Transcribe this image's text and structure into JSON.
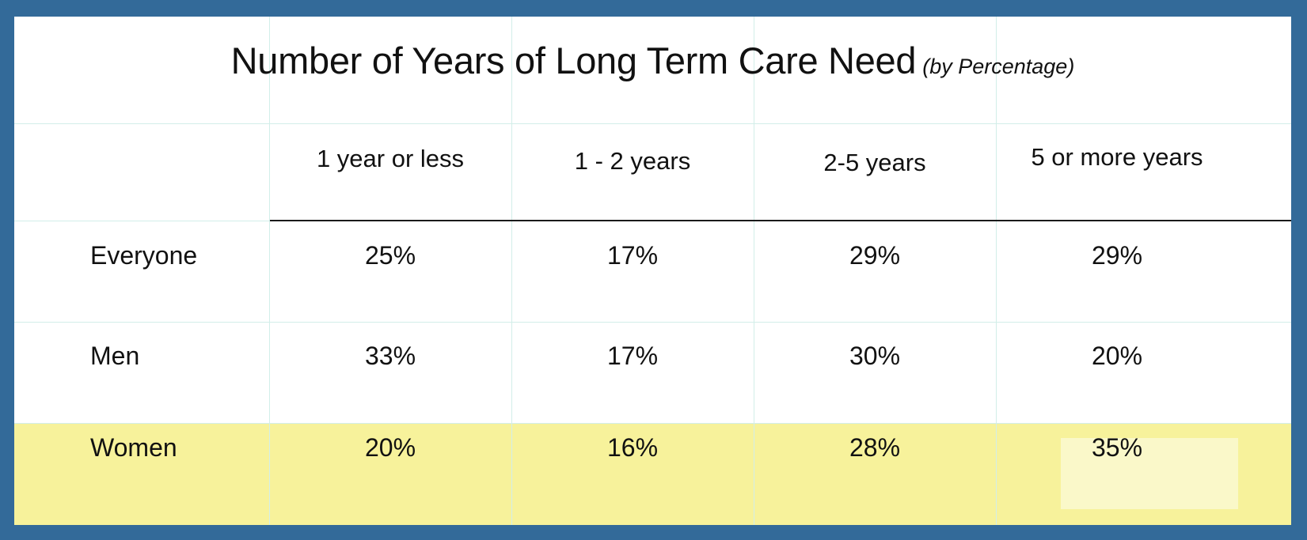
{
  "chart_data": {
    "type": "table",
    "title": "Number of Years of Long Term Care Need",
    "subtitle": "(by Percentage)",
    "columns": [
      "1 year or less",
      "1 - 2 years",
      "2-5 years",
      "5 or more years"
    ],
    "rows": [
      {
        "label": "Everyone",
        "values": [
          "25%",
          "17%",
          "29%",
          "29%"
        ]
      },
      {
        "label": "Men",
        "values": [
          "33%",
          "17%",
          "30%",
          "20%"
        ]
      },
      {
        "label": "Women",
        "values": [
          "20%",
          "16%",
          "28%",
          "35%"
        ]
      }
    ]
  },
  "colors": {
    "frame": "#336a99",
    "background": "#ffffff",
    "grid": "#d2eee9",
    "women_row": "#f7f29b",
    "highlight_cell": "#faf8c9",
    "header_rule": "#1a1a1a"
  }
}
